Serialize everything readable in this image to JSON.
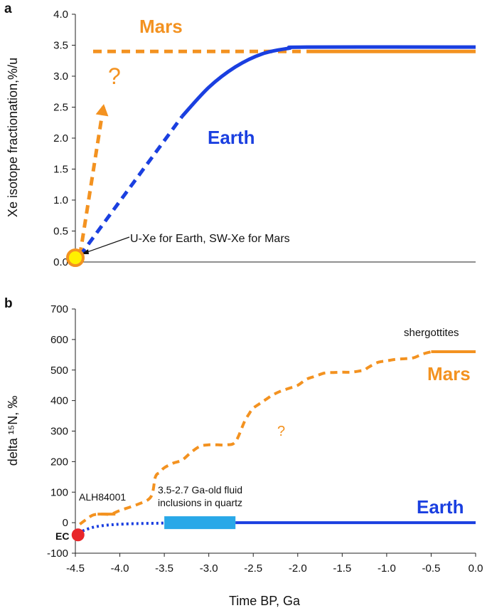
{
  "colors": {
    "mars": "#f39220",
    "earth": "#1a3fe0",
    "earth_box": "#29a8e8",
    "ec": "#e8262a",
    "sun_fill": "#fff000",
    "axis": "#222222"
  },
  "chart_data": [
    {
      "panel_label": "a",
      "type": "line",
      "ylabel": "Xe isotope fractionation,%/u",
      "xlabel": "",
      "xlim": [
        -4.5,
        0
      ],
      "ylim": [
        0,
        4.0
      ],
      "yticks": [
        "0.0",
        "0.5",
        "1.0",
        "1.5",
        "2.0",
        "2.5",
        "3.0",
        "3.5",
        "4.0"
      ],
      "grid": false,
      "series": [
        {
          "name": "Mars",
          "style": "dashed-plateau",
          "x": [
            -4.3,
            -1.9
          ],
          "y": [
            3.4,
            3.4
          ]
        },
        {
          "name": "Mars",
          "style": "solid-plateau",
          "x": [
            -1.9,
            0.0
          ],
          "y": [
            3.4,
            3.4
          ]
        },
        {
          "name": "Mars",
          "style": "dashed-arrow",
          "x": [
            -4.45,
            -4.18
          ],
          "y": [
            0.1,
            2.55
          ]
        },
        {
          "name": "Earth",
          "style": "dashed",
          "x": [
            -4.45,
            -3.3
          ],
          "y": [
            0.1,
            2.35
          ]
        },
        {
          "name": "Earth",
          "style": "solid",
          "x": [
            -3.3,
            -3.0,
            -2.7,
            -2.4,
            -2.1,
            -1.9,
            0.0
          ],
          "y": [
            2.35,
            2.82,
            3.15,
            3.36,
            3.45,
            3.47,
            3.47
          ]
        }
      ],
      "annotations": {
        "question": "?",
        "origin": "U-Xe for Earth, SW-Xe for Mars"
      }
    },
    {
      "panel_label": "b",
      "type": "line",
      "ylabel": "delta ¹⁵N, ‰",
      "xlabel": "Time BP, Ga",
      "xlim": [
        -4.5,
        0
      ],
      "ylim": [
        -100,
        700
      ],
      "yticks": [
        "-100",
        "0",
        "100",
        "200",
        "300",
        "400",
        "500",
        "600",
        "700"
      ],
      "xticks": [
        "-4.5",
        "-4.0",
        "-3.5",
        "-3.0",
        "-2.5",
        "-2.0",
        "-1.5",
        "-1.0",
        "-0.5",
        "0.0"
      ],
      "grid": false,
      "series": [
        {
          "name": "Mars",
          "style": "dashed",
          "x": [
            -4.45,
            -4.38,
            -4.3,
            -4.2,
            -4.1,
            -4.0,
            -3.8,
            -3.65,
            -3.6,
            -3.55,
            -3.5,
            -3.4,
            -3.3,
            -3.2,
            -3.1,
            -3.0,
            -2.9,
            -2.8,
            -2.7,
            -2.6,
            -2.55,
            -2.5,
            -2.4,
            -2.3,
            -2.2,
            -2.1,
            -2.0,
            -1.9,
            -1.8,
            -1.7,
            -1.6,
            -1.5,
            -1.4,
            -1.3,
            -1.25,
            -1.2,
            -1.1,
            -1.0,
            -0.9,
            -0.8,
            -0.7,
            -0.6,
            -0.5
          ],
          "y": [
            -5,
            10,
            25,
            28,
            28,
            40,
            60,
            85,
            150,
            165,
            180,
            195,
            205,
            230,
            250,
            255,
            255,
            255,
            265,
            330,
            355,
            375,
            395,
            415,
            430,
            440,
            450,
            470,
            480,
            490,
            492,
            493,
            493,
            497,
            500,
            510,
            525,
            530,
            535,
            537,
            540,
            552,
            560
          ]
        },
        {
          "name": "Mars",
          "style": "solid",
          "x": [
            -0.5,
            0.0
          ],
          "y": [
            560,
            560
          ]
        },
        {
          "name": "ALH84001",
          "style": "solid",
          "x": [
            -4.25,
            -4.05
          ],
          "y": [
            28,
            28
          ]
        },
        {
          "name": "Earth",
          "style": "dotted",
          "x": [
            -4.47,
            -4.4,
            -4.3,
            -4.2,
            -4.1,
            -4.0,
            -3.8,
            -3.6,
            -3.5
          ],
          "y": [
            -35,
            -25,
            -15,
            -10,
            -7,
            -5,
            -3,
            -2,
            -1
          ]
        },
        {
          "name": "Earth",
          "style": "thick-box",
          "x": [
            -3.5,
            -2.7
          ],
          "y": [
            0,
            0
          ]
        },
        {
          "name": "Earth",
          "style": "solid",
          "x": [
            -2.7,
            0.0
          ],
          "y": [
            0,
            0
          ]
        }
      ],
      "points": [
        {
          "name": "EC",
          "x": -4.47,
          "y": -40
        }
      ],
      "annotations": {
        "alh": "ALH84001",
        "fluid_1": "3.5-2.7 Ga-old fluid",
        "fluid_2": "inclusions in quartz",
        "shergottites": "shergottites",
        "question": "?",
        "ec": "EC"
      }
    }
  ],
  "labels": {
    "mars_a": "Mars",
    "earth_a": "Earth",
    "mars_b": "Mars",
    "earth_b": "Earth"
  }
}
